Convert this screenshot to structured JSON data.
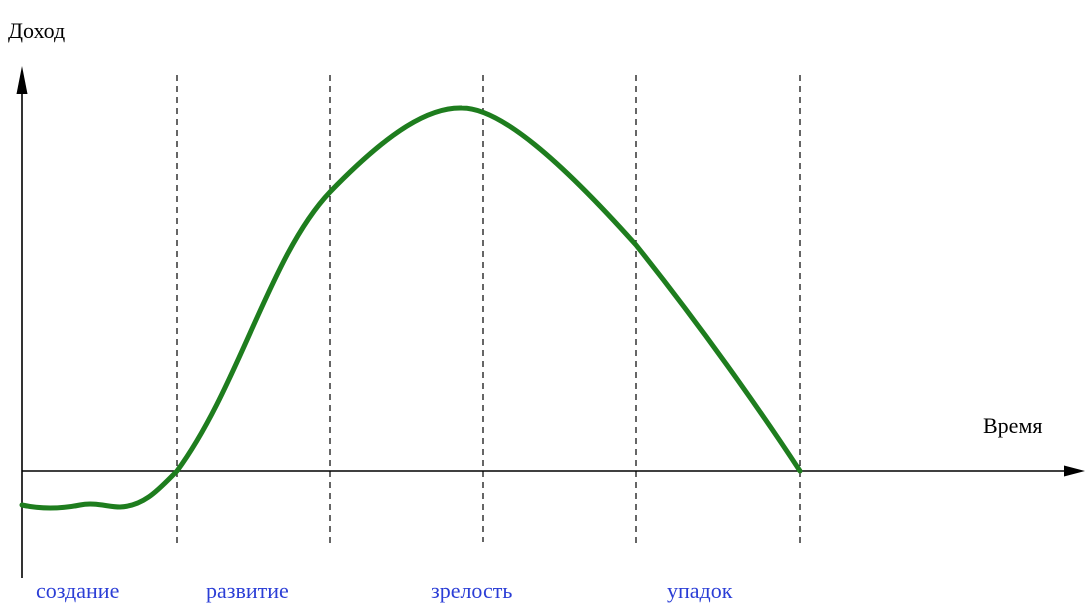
{
  "diagram": {
    "y_axis_label": "Доход",
    "x_axis_label": "Время",
    "stages": [
      {
        "label": "создание"
      },
      {
        "label": "развитие"
      },
      {
        "label": "зрелость"
      },
      {
        "label": "упадок"
      }
    ]
  },
  "colors": {
    "curve": "#1e7d1e",
    "axis": "#000000",
    "divider": "#000000",
    "stage_text": "#2b3ed6"
  }
}
